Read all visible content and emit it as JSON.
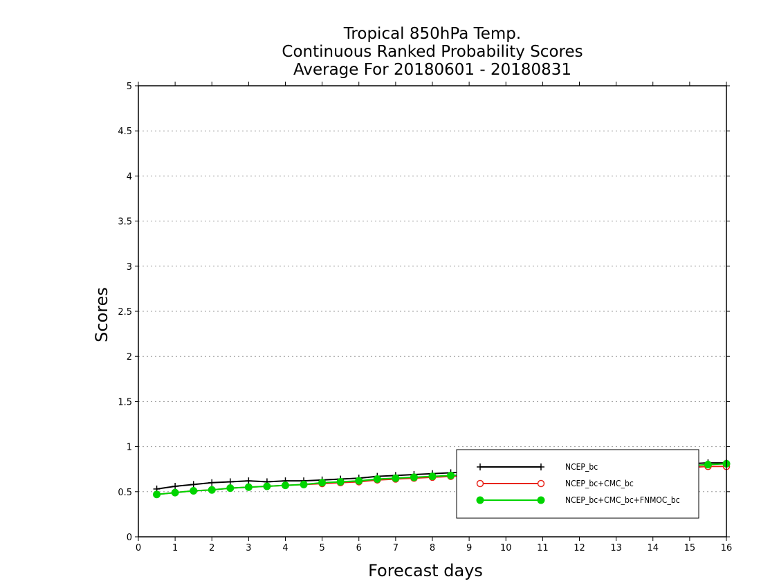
{
  "chart_data": {
    "type": "line",
    "title": [
      "Tropical 850hPa Temp.",
      "Continuous Ranked Probability Scores",
      "Average For 20180601 - 20180831"
    ],
    "xlabel": "Forecast days",
    "ylabel": "Scores",
    "xlim": [
      0,
      16
    ],
    "ylim": [
      0,
      5
    ],
    "xticks": [
      "0",
      "1",
      "2",
      "3",
      "4",
      "5",
      "6",
      "7",
      "8",
      "9",
      "10",
      "11",
      "12",
      "13",
      "14",
      "15",
      "16"
    ],
    "yticks": [
      "0",
      "0.5",
      "1",
      "1.5",
      "2",
      "2.5",
      "3",
      "3.5",
      "4",
      "4.5",
      "5"
    ],
    "grid": "horizontal-dotted",
    "legend_position": "bottom-right",
    "x": [
      0.5,
      1,
      1.5,
      2,
      2.5,
      3,
      3.5,
      4,
      4.5,
      5,
      5.5,
      6,
      6.5,
      7,
      7.5,
      8,
      8.5,
      9,
      9.5,
      10,
      10.5,
      11,
      11.5,
      12,
      12.5,
      13,
      13.5,
      14,
      14.5,
      15,
      15.5,
      16
    ],
    "series": [
      {
        "name": "NCEP_bc",
        "color": "#000000",
        "marker": "plus",
        "values": [
          0.53,
          0.56,
          0.58,
          0.6,
          0.61,
          0.62,
          0.61,
          0.62,
          0.62,
          0.63,
          0.64,
          0.65,
          0.67,
          0.68,
          0.69,
          0.7,
          0.71,
          0.72,
          0.73,
          0.74,
          0.75,
          0.76,
          0.76,
          0.77,
          0.78,
          0.78,
          0.79,
          0.8,
          0.8,
          0.81,
          0.82,
          0.82
        ]
      },
      {
        "name": "NCEP_bc+CMC_bc",
        "color": "#e8241a",
        "marker": "open-circle",
        "values": [
          0.47,
          0.49,
          0.51,
          0.52,
          0.54,
          0.55,
          0.56,
          0.57,
          0.58,
          0.59,
          0.6,
          0.61,
          0.63,
          0.64,
          0.65,
          0.66,
          0.67,
          0.68,
          0.69,
          0.7,
          0.71,
          0.72,
          0.72,
          0.73,
          0.74,
          0.75,
          0.75,
          0.76,
          0.76,
          0.77,
          0.78,
          0.78
        ]
      },
      {
        "name": "NCEP_bc+CMC_bc+FNMOC_bc",
        "color": "#00d400",
        "marker": "filled-circle",
        "values": [
          0.47,
          0.49,
          0.51,
          0.52,
          0.54,
          0.55,
          0.56,
          0.57,
          0.58,
          0.6,
          0.61,
          0.62,
          0.64,
          0.65,
          0.66,
          0.67,
          0.68,
          0.69,
          0.7,
          0.71,
          0.72,
          0.73,
          0.74,
          0.75,
          0.76,
          0.76,
          0.77,
          0.78,
          0.78,
          0.79,
          0.8,
          0.81
        ]
      }
    ]
  }
}
